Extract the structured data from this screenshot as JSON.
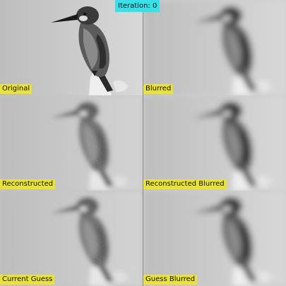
{
  "iteration_label": "Iteration: 0",
  "panels": [
    {
      "label": "Original"
    },
    {
      "label": "Blurred"
    },
    {
      "label": "Reconstructed"
    },
    {
      "label": "Reconstructed Blurred"
    },
    {
      "label": "Current Guess"
    },
    {
      "label": "Guess Blurred"
    }
  ],
  "colors": {
    "label_bg": "#e8e23a",
    "iteration_bg": "#39e0e8"
  }
}
